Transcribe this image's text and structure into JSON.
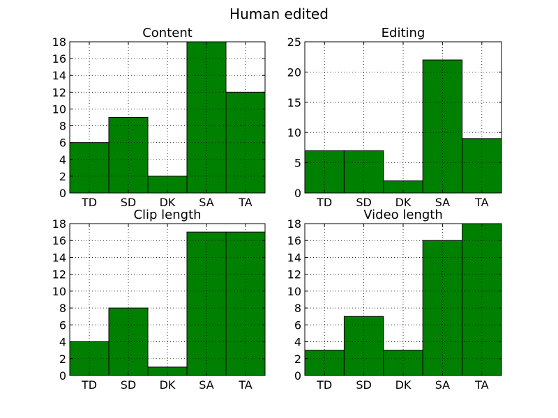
{
  "figure": {
    "title": "Human edited"
  },
  "chart_data": [
    {
      "type": "bar",
      "title": "Content",
      "categories": [
        "TD",
        "SD",
        "DK",
        "SA",
        "TA"
      ],
      "values": [
        6,
        9,
        2,
        18,
        12
      ],
      "ylim": [
        0,
        18
      ],
      "yticks": [
        0,
        2,
        4,
        6,
        8,
        10,
        12,
        14,
        16,
        18
      ],
      "grid": true,
      "bar_color": "#008000",
      "xlabel": "",
      "ylabel": ""
    },
    {
      "type": "bar",
      "title": "Editing",
      "categories": [
        "TD",
        "SD",
        "DK",
        "SA",
        "TA"
      ],
      "values": [
        7,
        7,
        2,
        22,
        9
      ],
      "ylim": [
        0,
        25
      ],
      "yticks": [
        0,
        5,
        10,
        15,
        20,
        25
      ],
      "grid": true,
      "bar_color": "#008000",
      "xlabel": "",
      "ylabel": ""
    },
    {
      "type": "bar",
      "title": "Clip length",
      "categories": [
        "TD",
        "SD",
        "DK",
        "SA",
        "TA"
      ],
      "values": [
        4,
        8,
        1,
        17,
        17
      ],
      "ylim": [
        0,
        18
      ],
      "yticks": [
        0,
        2,
        4,
        6,
        8,
        10,
        12,
        14,
        16,
        18
      ],
      "grid": true,
      "bar_color": "#008000",
      "xlabel": "",
      "ylabel": ""
    },
    {
      "type": "bar",
      "title": "Video length",
      "categories": [
        "TD",
        "SD",
        "DK",
        "SA",
        "TA"
      ],
      "values": [
        3,
        7,
        3,
        16,
        18
      ],
      "ylim": [
        0,
        18
      ],
      "yticks": [
        0,
        2,
        4,
        6,
        8,
        10,
        12,
        14,
        16,
        18
      ],
      "grid": true,
      "bar_color": "#008000",
      "xlabel": "",
      "ylabel": ""
    }
  ]
}
